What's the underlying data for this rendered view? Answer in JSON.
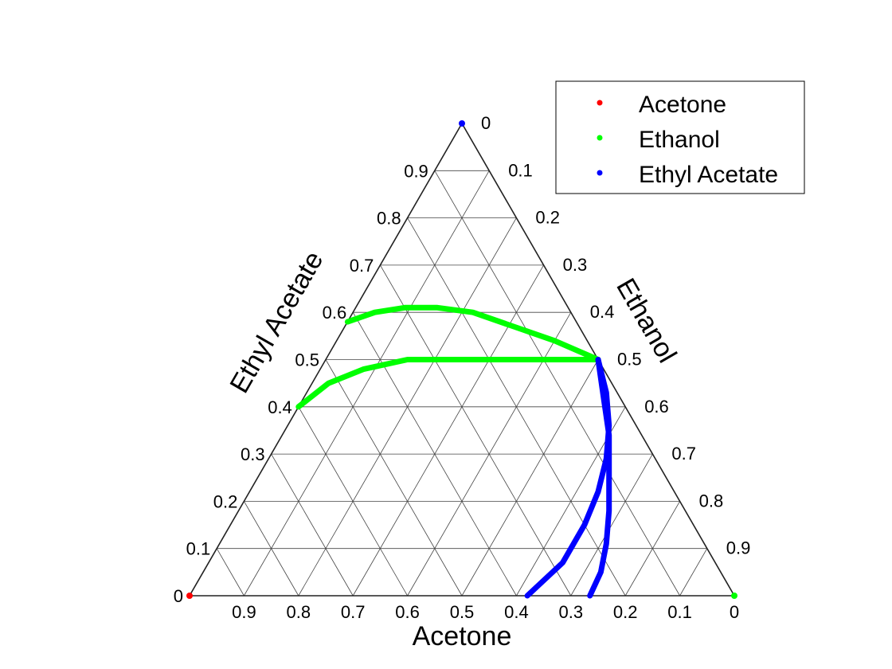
{
  "chart_data": {
    "type": "ternary",
    "axes": {
      "bottom": {
        "label": "Acetone",
        "ticks": [
          "0.9",
          "0.8",
          "0.7",
          "0.6",
          "0.5",
          "0.4",
          "0.3",
          "0.2",
          "0.1",
          "0"
        ]
      },
      "right": {
        "label": "Ethanol",
        "ticks": [
          "0",
          "0.1",
          "0.2",
          "0.3",
          "0.4",
          "0.5",
          "0.6",
          "0.7",
          "0.8",
          "0.9"
        ]
      },
      "left": {
        "label": "Ethyl Acetate",
        "ticks": [
          "0",
          "0.1",
          "0.2",
          "0.3",
          "0.4",
          "0.5",
          "0.6",
          "0.7",
          "0.8",
          "0.9"
        ]
      }
    },
    "grid": true,
    "legend": {
      "position": "top-right",
      "entries": [
        {
          "label": "Acetone",
          "color": "#ff0000"
        },
        {
          "label": "Ethanol",
          "color": "#00ff00"
        },
        {
          "label": "Ethyl Acetate",
          "color": "#0000ff"
        }
      ]
    },
    "vertices": [
      {
        "series": "Acetone",
        "color": "#ff0000",
        "acetone": 1,
        "ethanol": 0,
        "ethyl_acetate": 0
      },
      {
        "series": "Ethanol",
        "color": "#00ff00",
        "acetone": 0,
        "ethanol": 1,
        "ethyl_acetate": 0
      },
      {
        "series": "Ethyl Acetate",
        "color": "#0000ff",
        "acetone": 0,
        "ethanol": 0,
        "ethyl_acetate": 1
      }
    ],
    "curves": [
      {
        "series": "Ethanol",
        "color": "#00ff00",
        "points": [
          {
            "acetone": 0.42,
            "ethanol": 0.0,
            "ethyl_acetate": 0.58
          },
          {
            "acetone": 0.36,
            "ethanol": 0.04,
            "ethyl_acetate": 0.6
          },
          {
            "acetone": 0.3,
            "ethanol": 0.09,
            "ethyl_acetate": 0.61
          },
          {
            "acetone": 0.24,
            "ethanol": 0.15,
            "ethyl_acetate": 0.61
          },
          {
            "acetone": 0.18,
            "ethanol": 0.22,
            "ethyl_acetate": 0.6
          },
          {
            "acetone": 0.12,
            "ethanol": 0.31,
            "ethyl_acetate": 0.57
          },
          {
            "acetone": 0.06,
            "ethanol": 0.4,
            "ethyl_acetate": 0.54
          },
          {
            "acetone": 0.0,
            "ethanol": 0.5,
            "ethyl_acetate": 0.5
          }
        ]
      },
      {
        "series": "Ethanol",
        "color": "#00ff00",
        "points": [
          {
            "acetone": 0.6,
            "ethanol": 0.0,
            "ethyl_acetate": 0.4
          },
          {
            "acetone": 0.52,
            "ethanol": 0.03,
            "ethyl_acetate": 0.45
          },
          {
            "acetone": 0.44,
            "ethanol": 0.08,
            "ethyl_acetate": 0.48
          },
          {
            "acetone": 0.35,
            "ethanol": 0.15,
            "ethyl_acetate": 0.5
          },
          {
            "acetone": 0.26,
            "ethanol": 0.24,
            "ethyl_acetate": 0.5
          },
          {
            "acetone": 0.17,
            "ethanol": 0.33,
            "ethyl_acetate": 0.5
          },
          {
            "acetone": 0.08,
            "ethanol": 0.42,
            "ethyl_acetate": 0.5
          },
          {
            "acetone": 0.0,
            "ethanol": 0.5,
            "ethyl_acetate": 0.5
          }
        ]
      },
      {
        "series": "Ethyl Acetate",
        "color": "#0000ff",
        "points": [
          {
            "acetone": 0.0,
            "ethanol": 0.5,
            "ethyl_acetate": 0.5
          },
          {
            "acetone": 0.02,
            "ethanol": 0.55,
            "ethyl_acetate": 0.43
          },
          {
            "acetone": 0.05,
            "ethanol": 0.59,
            "ethyl_acetate": 0.36
          },
          {
            "acetone": 0.09,
            "ethanol": 0.62,
            "ethyl_acetate": 0.29
          },
          {
            "acetone": 0.14,
            "ethanol": 0.64,
            "ethyl_acetate": 0.22
          },
          {
            "acetone": 0.2,
            "ethanol": 0.65,
            "ethyl_acetate": 0.15
          },
          {
            "acetone": 0.28,
            "ethanol": 0.65,
            "ethyl_acetate": 0.07
          },
          {
            "acetone": 0.38,
            "ethanol": 0.62,
            "ethyl_acetate": 0.0
          }
        ]
      },
      {
        "series": "Ethyl Acetate",
        "color": "#0000ff",
        "points": [
          {
            "acetone": 0.0,
            "ethanol": 0.5,
            "ethyl_acetate": 0.5
          },
          {
            "acetone": 0.03,
            "ethanol": 0.55,
            "ethyl_acetate": 0.42
          },
          {
            "acetone": 0.06,
            "ethanol": 0.6,
            "ethyl_acetate": 0.34
          },
          {
            "acetone": 0.1,
            "ethanol": 0.64,
            "ethyl_acetate": 0.26
          },
          {
            "acetone": 0.14,
            "ethanol": 0.68,
            "ethyl_acetate": 0.18
          },
          {
            "acetone": 0.18,
            "ethanol": 0.71,
            "ethyl_acetate": 0.11
          },
          {
            "acetone": 0.22,
            "ethanol": 0.73,
            "ethyl_acetate": 0.05
          },
          {
            "acetone": 0.265,
            "ethanol": 0.735,
            "ethyl_acetate": 0.0
          }
        ]
      }
    ]
  }
}
